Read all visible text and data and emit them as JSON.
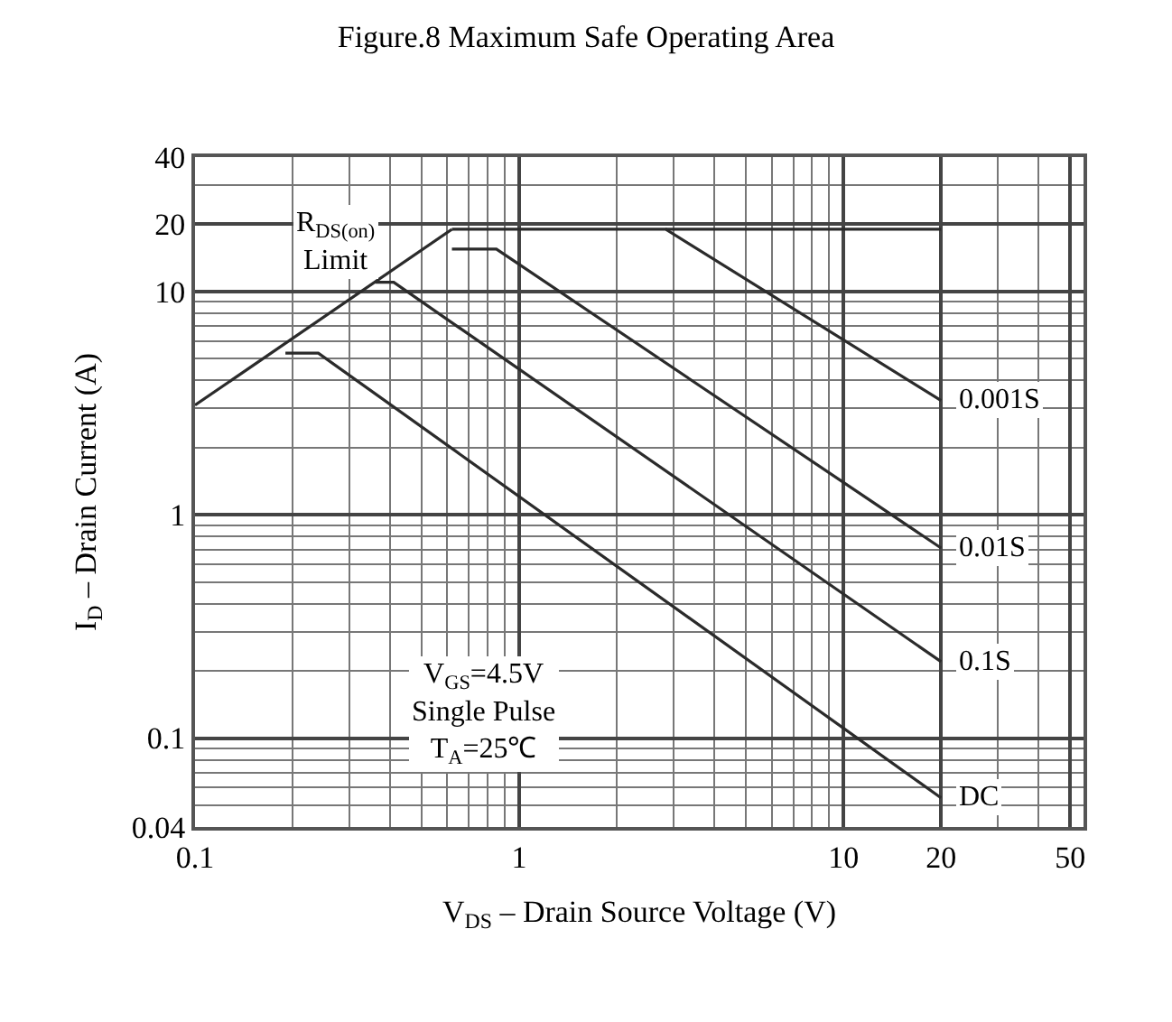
{
  "chart_data": {
    "type": "line",
    "title": "Figure.8 Maximum Safe Operating Area",
    "xlabel": "V$_{DS}$ – Drain Source Voltage (V)",
    "ylabel": "I$_{D}$ – Drain Current (A)",
    "log": "xy",
    "xlim": [
      0.1,
      55
    ],
    "ylim": [
      0.04,
      40
    ],
    "xticks": [
      0.1,
      1,
      10,
      20,
      50
    ],
    "yticks": [
      0.04,
      0.1,
      1,
      10,
      20,
      40
    ],
    "grid": true,
    "legend": false,
    "line_style": "solid",
    "marker": "none",
    "series": [
      {
        "color": "#2b2b2b",
        "x": [
          0.1,
          0.62
        ],
        "values": [
          3.1,
          19
        ]
      },
      {
        "color": "#2b2b2b",
        "x": [
          2.83,
          20
        ],
        "values": [
          19,
          19
        ]
      },
      {
        "name": "0.001S",
        "color": "#2b2b2b",
        "x": [
          0.62,
          2.83,
          20
        ],
        "values": [
          19,
          19,
          3.25
        ]
      },
      {
        "name": "0.01S",
        "color": "#2b2b2b",
        "x": [
          0.62,
          0.85,
          20
        ],
        "values": [
          15.5,
          15.5,
          0.71
        ]
      },
      {
        "name": "0.1S",
        "color": "#2b2b2b",
        "x": [
          0.36,
          0.41,
          20
        ],
        "values": [
          11,
          11,
          0.22
        ]
      },
      {
        "name": "DC",
        "color": "#2b2b2b",
        "x": [
          0.19,
          0.24,
          20
        ],
        "values": [
          5.3,
          5.3,
          0.054
        ]
      }
    ],
    "annotations": [
      "R$_{DS(on)}$\nLimit",
      "V$_{GS}$=4.5V\nSingle Pulse\nT$_{A}$=25℃"
    ]
  }
}
